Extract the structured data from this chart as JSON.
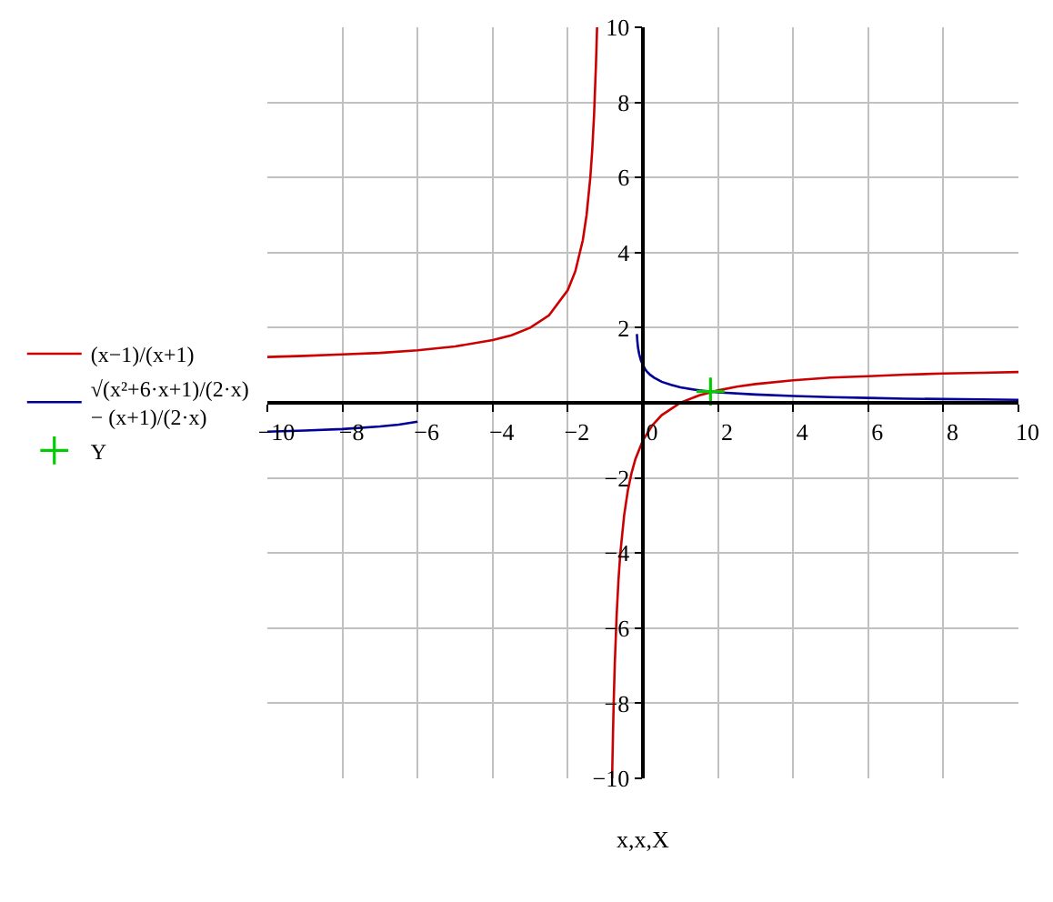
{
  "chart_data": {
    "type": "line",
    "xlabel": "x,x,X",
    "xlim": [
      -10,
      10
    ],
    "ylim": [
      -10,
      10
    ],
    "xticks": [
      -10,
      -8,
      -6,
      -4,
      -2,
      0,
      2,
      4,
      6,
      8,
      10
    ],
    "yticks": [
      -10,
      -8,
      -6,
      -4,
      -2,
      2,
      4,
      6,
      8,
      10
    ],
    "grid": true,
    "legend": "left",
    "series": [
      {
        "name": "(x−1)/(x+1)",
        "color": "#cc0000",
        "x": [
          -10,
          -9,
          -8,
          -7,
          -6,
          -5,
          -4,
          -3.5,
          -3,
          -2.5,
          -2,
          -1.8,
          -1.6,
          -1.5,
          -1.4,
          -1.35,
          -1.3,
          -1.25,
          -1.22,
          -1,
          -0.82,
          -0.8,
          -0.78,
          -0.75,
          -0.7,
          -0.65,
          -0.6,
          -0.5,
          -0.4,
          -0.3,
          -0.2,
          0,
          0.25,
          0.5,
          1,
          1.5,
          2,
          2.5,
          3,
          4,
          5,
          6,
          7,
          8,
          9,
          10
        ],
        "values": [
          1.22,
          1.25,
          1.29,
          1.33,
          1.4,
          1.5,
          1.67,
          1.8,
          2,
          2.33,
          3,
          3.5,
          4.33,
          5,
          6,
          6.71,
          7.67,
          9,
          10,
          null,
          -10,
          -9,
          -8.09,
          -7,
          -5.67,
          -4.71,
          -4,
          -3,
          -2.33,
          -1.86,
          -1.5,
          -1,
          -0.6,
          -0.33,
          0,
          0.2,
          0.33,
          0.43,
          0.5,
          0.6,
          0.67,
          0.71,
          0.75,
          0.78,
          0.8,
          0.82
        ]
      },
      {
        "name": "√(x²+6·x+1)/(2·x) − (x+1)/(2·x)",
        "color": "#000099",
        "x": [
          -10,
          -9,
          -8,
          -7,
          -6.5,
          -6,
          -3,
          -0.16,
          -0.15,
          -0.13,
          -0.1,
          -0.05,
          0.05,
          0.1,
          0.2,
          0.3,
          0.5,
          0.75,
          1,
          1.5,
          2,
          3,
          4,
          5,
          6,
          7,
          8,
          9,
          10
        ],
        "values": [
          -0.77,
          -0.74,
          -0.7,
          -0.63,
          -0.58,
          -0.5,
          null,
          1.83,
          1.67,
          1.47,
          1.3,
          1.12,
          0.91,
          0.84,
          0.74,
          0.67,
          0.56,
          0.48,
          0.41,
          0.33,
          0.28,
          0.22,
          0.18,
          0.15,
          0.13,
          0.11,
          0.1,
          0.09,
          0.08
        ]
      },
      {
        "name": "Y",
        "type": "scatter",
        "marker": "cross",
        "color": "#00cc00",
        "x": [
          1.8
        ],
        "values": [
          0.3
        ]
      }
    ]
  }
}
